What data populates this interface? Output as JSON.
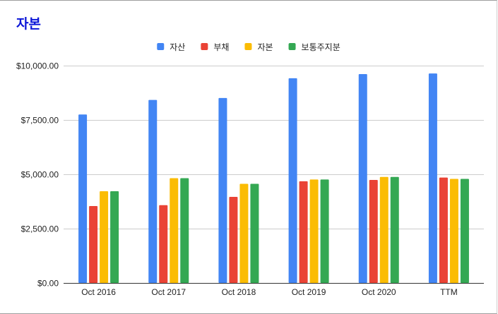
{
  "chart_data": {
    "type": "bar",
    "title": "자본",
    "categories": [
      "Oct 2016",
      "Oct 2017",
      "Oct 2018",
      "Oct 2019",
      "Oct 2020",
      "TTM"
    ],
    "series": [
      {
        "name": "자산",
        "color": "#4285f4",
        "values": [
          7750,
          8420,
          8510,
          9420,
          9610,
          9640
        ]
      },
      {
        "name": "부채",
        "color": "#ea4335",
        "values": [
          3540,
          3580,
          3960,
          4680,
          4740,
          4850
        ]
      },
      {
        "name": "자본",
        "color": "#fbbc04",
        "values": [
          4220,
          4820,
          4560,
          4760,
          4880,
          4790
        ]
      },
      {
        "name": "보통주지분",
        "color": "#34a853",
        "values": [
          4220,
          4820,
          4560,
          4760,
          4880,
          4790
        ]
      }
    ],
    "ylim": [
      0,
      10000
    ],
    "yticks": [
      0,
      2500,
      5000,
      7500,
      10000
    ],
    "ytick_labels": [
      "$0.00",
      "$2,500.00",
      "$5,000.00",
      "$7,500.00",
      "$10,000.00"
    ],
    "xlabel": "",
    "ylabel": "",
    "grid": true,
    "legend_position": "top-center"
  }
}
